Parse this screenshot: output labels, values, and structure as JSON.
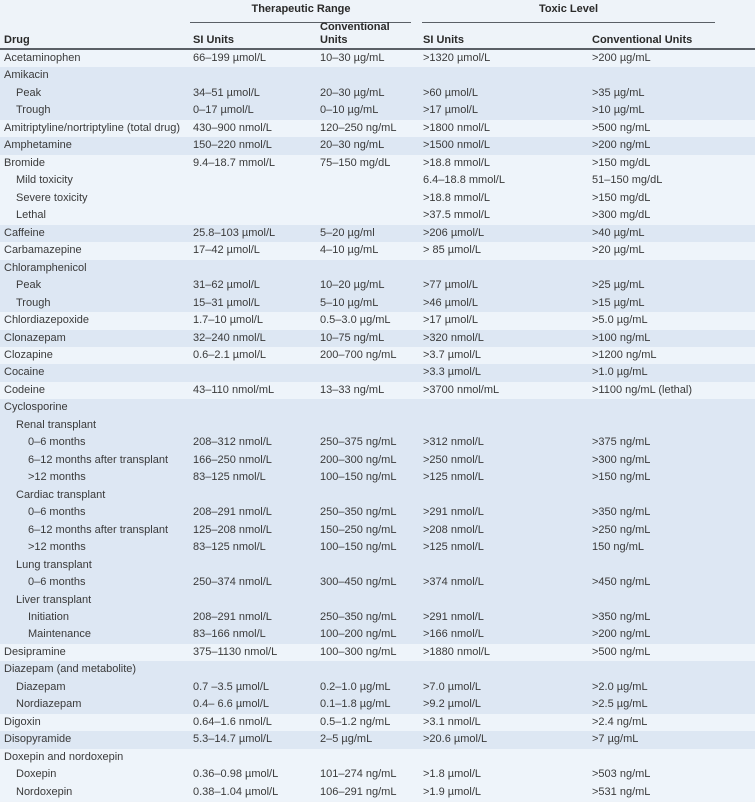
{
  "header": {
    "group_therapeutic": "Therapeutic Range",
    "group_toxic": "Toxic Level",
    "col_drug": "Drug",
    "col_si": "SI Units",
    "col_conv_line1": "Conventional",
    "col_conv_line2": "Units",
    "col_toxic_si": "SI Units",
    "col_toxic_conv": "Conventional Units"
  },
  "rows": [
    {
      "drug": "Acetaminophen",
      "indent": 0,
      "si": "66–199 µmol/L",
      "conv": "10–30 µg/mL",
      "tsi": ">1320 µmol/L",
      "tconv": ">200 µg/mL",
      "shade": "l"
    },
    {
      "drug": "Amikacin",
      "indent": 0,
      "si": "",
      "conv": "",
      "tsi": "",
      "tconv": "",
      "shade": "d"
    },
    {
      "drug": "Peak",
      "indent": 1,
      "si": "34–51 µmol/L",
      "conv": "20–30 µg/mL",
      "tsi": ">60 µmol/L",
      "tconv": ">35 µg/mL",
      "shade": "d"
    },
    {
      "drug": "Trough",
      "indent": 1,
      "si": "0–17 µmol/L",
      "conv": "0–10 µg/mL",
      "tsi": ">17 µmol/L",
      "tconv": ">10 µg/mL",
      "shade": "d"
    },
    {
      "drug": "Amitriptyline/nortriptyline (total drug)",
      "indent": 0,
      "si": "430–900 nmol/L",
      "conv": "120–250 ng/mL",
      "tsi": ">1800 nmol/L",
      "tconv": ">500 ng/mL",
      "shade": "l"
    },
    {
      "drug": "Amphetamine",
      "indent": 0,
      "si": "150–220 nmol/L",
      "conv": "20–30 ng/mL",
      "tsi": ">1500 nmol/L",
      "tconv": ">200 ng/mL",
      "shade": "d"
    },
    {
      "drug": "Bromide",
      "indent": 0,
      "si": "9.4–18.7 mmol/L",
      "conv": "75–150 mg/dL",
      "tsi": ">18.8 mmol/L",
      "tconv": ">150 mg/dL",
      "shade": "l"
    },
    {
      "drug": "Mild toxicity",
      "indent": 1,
      "si": "",
      "conv": "",
      "tsi": "6.4–18.8 mmol/L",
      "tconv": "51–150 mg/dL",
      "shade": "l"
    },
    {
      "drug": "Severe toxicity",
      "indent": 1,
      "si": "",
      "conv": "",
      "tsi": ">18.8 mmol/L",
      "tconv": ">150 mg/dL",
      "shade": "l"
    },
    {
      "drug": "Lethal",
      "indent": 1,
      "si": "",
      "conv": "",
      "tsi": ">37.5 mmol/L",
      "tconv": ">300 mg/dL",
      "shade": "l"
    },
    {
      "drug": "Caffeine",
      "indent": 0,
      "si": "25.8–103 µmol/L",
      "conv": "5–20 µg/ml",
      "tsi": ">206 µmol/L",
      "tconv": ">40 µg/mL",
      "shade": "d"
    },
    {
      "drug": "Carbamazepine",
      "indent": 0,
      "si": "17–42 µmol/L",
      "conv": "4–10 µg/mL",
      "tsi": "> 85 µmol/L",
      "tconv": ">20 µg/mL",
      "shade": "l"
    },
    {
      "drug": "Chloramphenicol",
      "indent": 0,
      "si": "",
      "conv": "",
      "tsi": "",
      "tconv": "",
      "shade": "d"
    },
    {
      "drug": "Peak",
      "indent": 1,
      "si": "31–62 µmol/L",
      "conv": "10–20 µg/mL",
      "tsi": ">77 µmol/L",
      "tconv": ">25 µg/mL",
      "shade": "d"
    },
    {
      "drug": "Trough",
      "indent": 1,
      "si": "15–31 µmol/L",
      "conv": "5–10 µg/mL",
      "tsi": ">46 µmol/L",
      "tconv": ">15 µg/mL",
      "shade": "d"
    },
    {
      "drug": "Chlordiazepoxide",
      "indent": 0,
      "si": "1.7–10 µmol/L",
      "conv": "0.5–3.0 µg/mL",
      "tsi": ">17 µmol/L",
      "tconv": ">5.0 µg/mL",
      "shade": "l"
    },
    {
      "drug": "Clonazepam",
      "indent": 0,
      "si": "32–240 nmol/L",
      "conv": "10–75 ng/mL",
      "tsi": ">320 nmol/L",
      "tconv": ">100 ng/mL",
      "shade": "d"
    },
    {
      "drug": "Clozapine",
      "indent": 0,
      "si": "0.6–2.1 µmol/L",
      "conv": "200–700 ng/mL",
      "tsi": ">3.7 µmol/L",
      "tconv": ">1200 ng/mL",
      "shade": "l"
    },
    {
      "drug": "Cocaine",
      "indent": 0,
      "si": "",
      "conv": "",
      "tsi": ">3.3 µmol/L",
      "tconv": ">1.0 µg/mL",
      "shade": "d"
    },
    {
      "drug": "Codeine",
      "indent": 0,
      "si": "43–110 nmol/mL",
      "conv": "13–33 ng/mL",
      "tsi": ">3700 nmol/mL",
      "tconv": ">1100 ng/mL (lethal)",
      "shade": "l"
    },
    {
      "drug": "Cyclosporine",
      "indent": 0,
      "si": "",
      "conv": "",
      "tsi": "",
      "tconv": "",
      "shade": "d"
    },
    {
      "drug": "Renal transplant",
      "indent": 1,
      "si": "",
      "conv": "",
      "tsi": "",
      "tconv": "",
      "shade": "d"
    },
    {
      "drug": "0–6 months",
      "indent": 2,
      "si": "208–312 nmol/L",
      "conv": "250–375 ng/mL",
      "tsi": ">312 nmol/L",
      "tconv": ">375 ng/mL",
      "shade": "d"
    },
    {
      "drug": "6–12 months after transplant",
      "indent": 2,
      "si": "166–250 nmol/L",
      "conv": "200–300 ng/mL",
      "tsi": ">250 nmol/L",
      "tconv": ">300 ng/mL",
      "shade": "d"
    },
    {
      "drug": ">12 months",
      "indent": 2,
      "si": "83–125 nmol/L",
      "conv": "100–150 ng/mL",
      "tsi": ">125 nmol/L",
      "tconv": ">150 ng/mL",
      "shade": "d"
    },
    {
      "drug": "Cardiac transplant",
      "indent": 1,
      "si": "",
      "conv": "",
      "tsi": "",
      "tconv": "",
      "shade": "d"
    },
    {
      "drug": "0–6 months",
      "indent": 2,
      "si": "208–291 nmol/L",
      "conv": "250–350 ng/mL",
      "tsi": ">291 nmol/L",
      "tconv": ">350 ng/mL",
      "shade": "d"
    },
    {
      "drug": "6–12 months after transplant",
      "indent": 2,
      "si": "125–208 nmol/L",
      "conv": "150–250 ng/mL",
      "tsi": ">208 nmol/L",
      "tconv": ">250 ng/mL",
      "shade": "d"
    },
    {
      "drug": ">12 months",
      "indent": 2,
      "si": "83–125 nmol/L",
      "conv": "100–150 ng/mL",
      "tsi": ">125 nmol/L",
      "tconv": "150 ng/mL",
      "shade": "d"
    },
    {
      "drug": "Lung transplant",
      "indent": 1,
      "si": "",
      "conv": "",
      "tsi": "",
      "tconv": "",
      "shade": "d"
    },
    {
      "drug": "0–6 months",
      "indent": 2,
      "si": "250–374 nmol/L",
      "conv": "300–450 ng/mL",
      "tsi": ">374 nmol/L",
      "tconv": ">450 ng/mL",
      "shade": "d"
    },
    {
      "drug": "Liver transplant",
      "indent": 1,
      "si": "",
      "conv": "",
      "tsi": "",
      "tconv": "",
      "shade": "d"
    },
    {
      "drug": "Initiation",
      "indent": 2,
      "si": "208–291 nmol/L",
      "conv": "250–350 ng/mL",
      "tsi": ">291 nmol/L",
      "tconv": ">350 ng/mL",
      "shade": "d"
    },
    {
      "drug": "Maintenance",
      "indent": 2,
      "si": "83–166 nmol/L",
      "conv": "100–200 ng/mL",
      "tsi": ">166 nmol/L",
      "tconv": ">200 ng/mL",
      "shade": "d"
    },
    {
      "drug": "Desipramine",
      "indent": 0,
      "si": "375–1130 nmol/L",
      "conv": "100–300 ng/mL",
      "tsi": ">1880 nmol/L",
      "tconv": ">500 ng/mL",
      "shade": "l"
    },
    {
      "drug": "Diazepam (and metabolite)",
      "indent": 0,
      "si": "",
      "conv": "",
      "tsi": "",
      "tconv": "",
      "shade": "d"
    },
    {
      "drug": "Diazepam",
      "indent": 1,
      "si": "0.7 –3.5 µmol/L",
      "conv": "0.2–1.0 µg/mL",
      "tsi": ">7.0 µmol/L",
      "tconv": ">2.0 µg/mL",
      "shade": "d"
    },
    {
      "drug": "Nordiazepam",
      "indent": 1,
      "si": "0.4– 6.6 µmol/L",
      "conv": "0.1–1.8 µg/mL",
      "tsi": ">9.2 µmol/L",
      "tconv": ">2.5 µg/mL",
      "shade": "d"
    },
    {
      "drug": "Digoxin",
      "indent": 0,
      "si": "0.64–1.6 nmol/L",
      "conv": "0.5–1.2 ng/mL",
      "tsi": ">3.1 nmol/L",
      "tconv": ">2.4 ng/mL",
      "shade": "l"
    },
    {
      "drug": "Disopyramide",
      "indent": 0,
      "si": "5.3–14.7 µmol/L",
      "conv": "2–5 µg/mL",
      "tsi": ">20.6 µmol/L",
      "tconv": ">7 µg/mL",
      "shade": "d"
    },
    {
      "drug": "Doxepin and nordoxepin",
      "indent": 0,
      "si": "",
      "conv": "",
      "tsi": "",
      "tconv": "",
      "shade": "l"
    },
    {
      "drug": "Doxepin",
      "indent": 1,
      "si": "0.36–0.98 µmol/L",
      "conv": "101–274 ng/mL",
      "tsi": ">1.8 µmol/L",
      "tconv": ">503 ng/mL",
      "shade": "l"
    },
    {
      "drug": "Nordoxepin",
      "indent": 1,
      "si": "0.38–1.04 µmol/L",
      "conv": "106–291 ng/mL",
      "tsi": ">1.9 µmol/L",
      "tconv": ">531 ng/mL",
      "shade": "l"
    }
  ]
}
